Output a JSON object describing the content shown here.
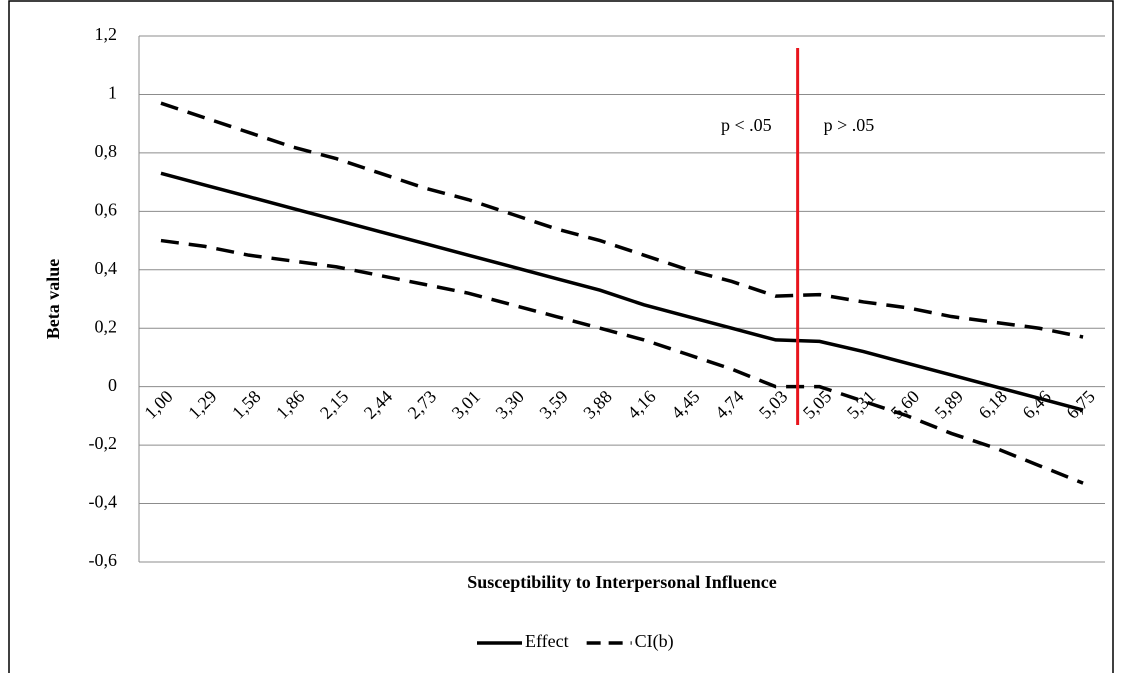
{
  "chart_data": {
    "type": "line",
    "x_label": "Susceptibility to Interpersonal Influence",
    "y_label": "Beta value",
    "categories": [
      "1,00",
      "1,29",
      "1,58",
      "1,86",
      "2,15",
      "2,44",
      "2,73",
      "3,01",
      "3,30",
      "3,59",
      "3,88",
      "4,16",
      "4,45",
      "4,74",
      "5,03",
      "5,05",
      "5,31",
      "5,60",
      "5,89",
      "6,18",
      "6,46",
      "6,75"
    ],
    "series": [
      {
        "name": "Effect",
        "color": "#000000",
        "dashed": false,
        "values": [
          0.73,
          0.69,
          0.65,
          0.61,
          0.57,
          0.53,
          0.49,
          0.45,
          0.41,
          0.37,
          0.33,
          0.28,
          0.24,
          0.2,
          0.16,
          0.155,
          0.12,
          0.08,
          0.04,
          0.0,
          -0.04,
          -0.08
        ]
      },
      {
        "name": "CI(b)",
        "color": "#000000",
        "dashed": true,
        "values": [
          0.97,
          0.92,
          0.87,
          0.82,
          0.78,
          0.73,
          0.68,
          0.64,
          0.59,
          0.54,
          0.5,
          0.45,
          0.4,
          0.36,
          0.31,
          0.315,
          0.29,
          0.27,
          0.24,
          0.22,
          0.2,
          0.17
        ],
        "lower": [
          0.5,
          0.48,
          0.45,
          0.43,
          0.41,
          0.38,
          0.35,
          0.32,
          0.28,
          0.24,
          0.2,
          0.16,
          0.11,
          0.06,
          0.0,
          0.0,
          -0.05,
          -0.1,
          -0.16,
          -0.21,
          -0.27,
          -0.33
        ]
      }
    ],
    "annotations": [
      "p < .05",
      "p > .05"
    ],
    "threshold_color": "#e8141c",
    "ylim": [
      -0.6,
      1.2
    ],
    "yticks": [
      {
        "value": -0.6,
        "label": "-0,6"
      },
      {
        "value": -0.4,
        "label": "-0,4"
      },
      {
        "value": -0.2,
        "label": "-0,2"
      },
      0,
      {
        "value": 0.2,
        "label": "0,2"
      },
      {
        "value": 0.4,
        "label": "0,4"
      },
      {
        "value": 0.6,
        "label": "0,6"
      },
      {
        "value": 0.8,
        "label": "0,8"
      },
      1,
      {
        "value": 1.2,
        "label": "1,2"
      }
    ],
    "grid": true,
    "legend": "bottom"
  }
}
